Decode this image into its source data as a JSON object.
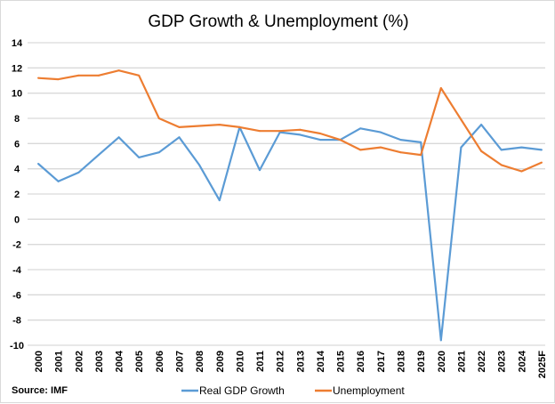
{
  "chart_data": {
    "type": "line",
    "title": "GDP Growth & Unemployment (%)",
    "source": "Source: IMF",
    "xlabel": "",
    "ylabel": "",
    "categories": [
      "2000",
      "2001",
      "2002",
      "2003",
      "2004",
      "2005",
      "2006",
      "2007",
      "2008",
      "2009",
      "2010",
      "2011",
      "2012",
      "2013",
      "2014",
      "2015",
      "2016",
      "2017",
      "2018",
      "2019",
      "2020",
      "2021",
      "2022",
      "2023",
      "2024",
      "2025F"
    ],
    "ylim": [
      -10,
      14
    ],
    "yticks": [
      -10,
      -8,
      -6,
      -4,
      -2,
      0,
      2,
      4,
      6,
      8,
      10,
      12,
      14
    ],
    "grid": true,
    "legend": "bottom",
    "series": [
      {
        "name": "Real GDP Growth",
        "color": "#5b9bd5",
        "values": [
          4.4,
          3.0,
          3.7,
          5.1,
          6.5,
          4.9,
          5.3,
          6.5,
          4.3,
          1.5,
          7.3,
          3.9,
          6.9,
          6.7,
          6.3,
          6.3,
          7.2,
          6.9,
          6.3,
          6.1,
          -9.6,
          5.7,
          7.5,
          5.5,
          5.7,
          5.5
        ]
      },
      {
        "name": "Unemployment",
        "color": "#ed7d31",
        "values": [
          11.2,
          11.1,
          11.4,
          11.4,
          11.8,
          11.4,
          8.0,
          7.3,
          7.4,
          7.5,
          7.3,
          7.0,
          7.0,
          7.1,
          6.8,
          6.3,
          5.5,
          5.7,
          5.3,
          5.1,
          10.4,
          7.9,
          5.4,
          4.3,
          3.8,
          4.5
        ]
      }
    ]
  }
}
